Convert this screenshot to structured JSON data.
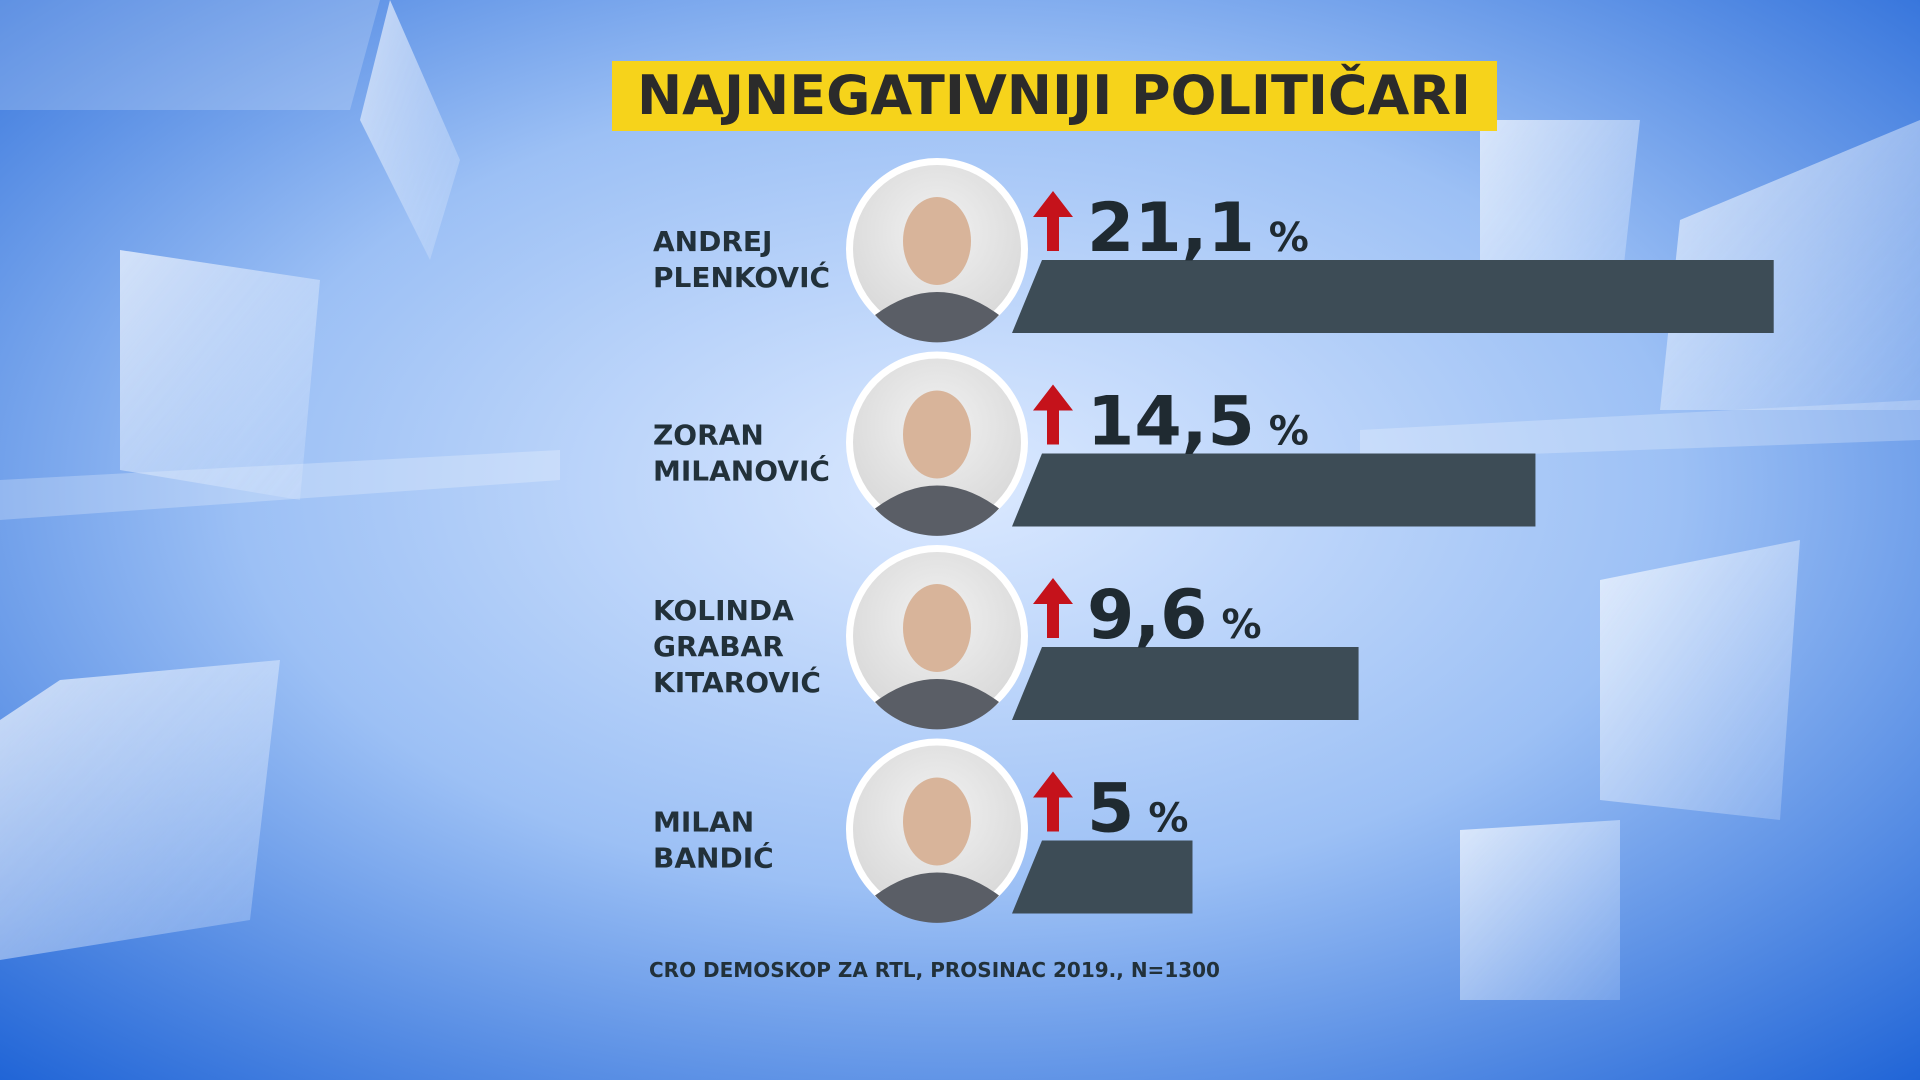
{
  "chart_data": {
    "type": "bar",
    "title": "NAJNEGATIVNIJI POLITIČARI",
    "categories": [
      [
        "ANDREJ",
        "PLENKOVIĆ"
      ],
      [
        "ZORAN",
        "MILANOVIĆ"
      ],
      [
        "KOLINDA",
        "GRABAR",
        "KITAROVIĆ"
      ],
      [
        "MILAN",
        "BANDIĆ"
      ]
    ],
    "values": [
      21.1,
      14.5,
      9.6,
      5
    ],
    "value_labels": [
      "21,1",
      "14,5",
      "9,6",
      "5"
    ],
    "value_unit": "%",
    "color": "#3d4c56",
    "source": "CRO DEMOSKOP ZA RTL, PROSINAC 2019., N=1300"
  }
}
